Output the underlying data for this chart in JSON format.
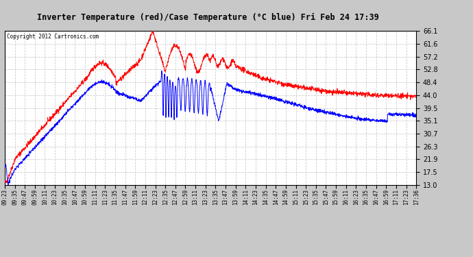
{
  "title": "Inverter Temperature (red)/Case Temperature (°C blue) Fri Feb 24 17:39",
  "copyright": "Copyright 2012 Cartronics.com",
  "background_color": "#c8c8c8",
  "plot_bg_color": "#ffffff",
  "grid_color": "#cccccc",
  "y_ticks": [
    13.0,
    17.5,
    21.9,
    26.3,
    30.7,
    35.1,
    39.5,
    44.0,
    48.4,
    52.8,
    57.2,
    61.6,
    66.1
  ],
  "y_min": 13.0,
  "y_max": 66.1,
  "x_labels": [
    "09:23",
    "09:35",
    "09:47",
    "09:59",
    "10:11",
    "10:23",
    "10:35",
    "10:47",
    "10:59",
    "11:11",
    "11:23",
    "11:35",
    "11:47",
    "11:59",
    "12:11",
    "12:23",
    "12:35",
    "12:47",
    "12:59",
    "13:11",
    "13:23",
    "13:35",
    "13:47",
    "13:59",
    "14:11",
    "14:23",
    "14:35",
    "14:47",
    "14:59",
    "15:11",
    "15:23",
    "15:35",
    "15:47",
    "15:59",
    "16:11",
    "16:23",
    "16:35",
    "16:47",
    "16:59",
    "17:11",
    "17:23",
    "17:36"
  ],
  "red_color": "#ff0000",
  "blue_color": "#0000ff"
}
